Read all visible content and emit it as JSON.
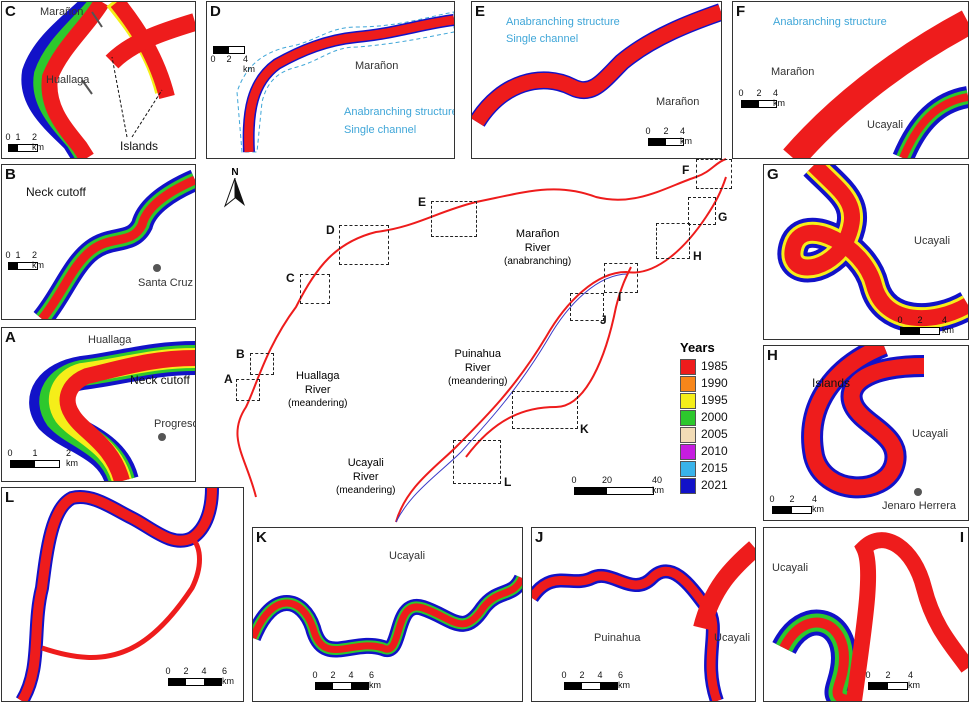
{
  "panels": {
    "C": {
      "label": "C",
      "names": [
        "Marañon",
        "Huallaga",
        "Islands"
      ],
      "scale": [
        "0",
        "1",
        "2 km"
      ]
    },
    "D": {
      "label": "D",
      "names": [
        "Marañon"
      ],
      "legend": [
        "Anabranching structure",
        "Single channel"
      ],
      "scale": [
        "0",
        "2",
        "4 km"
      ]
    },
    "E": {
      "label": "E",
      "names": [
        "Marañon"
      ],
      "legend": [
        "Anabranching structure",
        "Single channel"
      ],
      "scale": [
        "0",
        "2",
        "4 km"
      ]
    },
    "F": {
      "label": "F",
      "names": [
        "Marañon",
        "Ucayali"
      ],
      "legend": [
        "Anabranching structure"
      ],
      "scale": [
        "0",
        "2",
        "4 km"
      ]
    },
    "B": {
      "label": "B",
      "names": [
        "Neck cutoff",
        "Santa Cruz"
      ],
      "scale": [
        "0",
        "1",
        "2 km"
      ]
    },
    "A": {
      "label": "A",
      "names": [
        "Huallaga",
        "Neck cutoff",
        "Progreso"
      ],
      "scale": [
        "0",
        "1",
        "2 km"
      ]
    },
    "G": {
      "label": "G",
      "names": [
        "Ucayali"
      ],
      "scale": [
        "0",
        "2",
        "4 km"
      ]
    },
    "H": {
      "label": "H",
      "names": [
        "Islands",
        "Ucayali",
        "Jenaro Herrera"
      ],
      "scale": [
        "0",
        "2",
        "4 km"
      ]
    },
    "L": {
      "label": "L",
      "scale": [
        "0",
        "2",
        "4",
        "6 km"
      ]
    },
    "K": {
      "label": "K",
      "names": [
        "Ucayali"
      ],
      "scale": [
        "0",
        "2",
        "4",
        "6 km"
      ]
    },
    "J": {
      "label": "J",
      "names": [
        "Puinahua",
        "Ucayali"
      ],
      "scale": [
        "0",
        "2",
        "4",
        "6 km"
      ]
    },
    "I": {
      "label": "I",
      "names": [
        "Ucayali"
      ],
      "scale": [
        "0",
        "2",
        "4 km"
      ]
    }
  },
  "center": {
    "north": "N",
    "box_labels": [
      "A",
      "B",
      "C",
      "D",
      "E",
      "F",
      "G",
      "H",
      "I",
      "J",
      "K",
      "L"
    ],
    "rivers": {
      "huallaga": [
        "Huallaga",
        "River",
        "(meandering)"
      ],
      "maranon": [
        "Marañon",
        "River",
        "(anabranching)"
      ],
      "puinahua": [
        "Puinahua",
        "River",
        "(meandering)"
      ],
      "ucayali": [
        "Ucayali",
        "River",
        "(meandering)"
      ]
    },
    "scale": [
      "0",
      "20",
      "40 km"
    ]
  },
  "legend": {
    "title": "Years",
    "items": [
      {
        "year": "1985",
        "color": "#ee1c1c"
      },
      {
        "year": "1990",
        "color": "#f7861a"
      },
      {
        "year": "1995",
        "color": "#f5ee19"
      },
      {
        "year": "2000",
        "color": "#2dc82d"
      },
      {
        "year": "2005",
        "color": "#f2dcb6"
      },
      {
        "year": "2010",
        "color": "#c61de0"
      },
      {
        "year": "2015",
        "color": "#39b3ea"
      },
      {
        "year": "2021",
        "color": "#1212c8"
      }
    ]
  }
}
